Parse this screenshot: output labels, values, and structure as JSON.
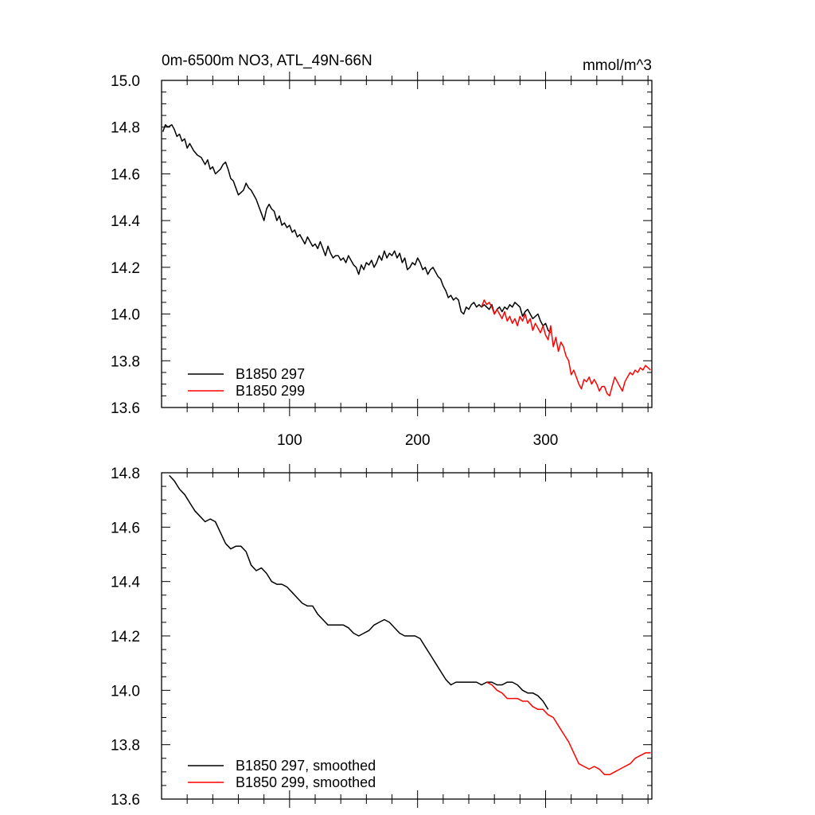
{
  "chart_data": [
    {
      "type": "line",
      "title_left": "0m-6500m NO3, ATL_49N-66N",
      "title_right": "mmol/m^3",
      "xlim": [
        0,
        383
      ],
      "ylim": [
        13.6,
        15.0
      ],
      "x_major_ticks": [
        100,
        200,
        300
      ],
      "x_major_labels": [
        "100",
        "200",
        "300"
      ],
      "y_major_ticks": [
        13.6,
        13.8,
        14.0,
        14.2,
        14.4,
        14.6,
        14.8,
        15.0
      ],
      "y_major_labels": [
        "13.6",
        "13.8",
        "14.0",
        "14.2",
        "14.4",
        "14.6",
        "14.8",
        "15.0"
      ],
      "legend_position": "bottom-left",
      "series": [
        {
          "name": "B1850 297",
          "color": "#000000",
          "x": [
            1,
            3,
            5,
            8,
            10,
            12,
            14,
            16,
            18,
            20,
            22,
            25,
            28,
            31,
            34,
            36,
            38,
            40,
            42,
            44,
            46,
            48,
            50,
            52,
            54,
            56,
            58,
            60,
            62,
            64,
            66,
            68,
            70,
            72,
            74,
            76,
            78,
            80,
            82,
            84,
            86,
            88,
            90,
            92,
            94,
            96,
            98,
            100,
            102,
            104,
            106,
            108,
            110,
            112,
            114,
            116,
            118,
            120,
            122,
            124,
            126,
            128,
            130,
            132,
            134,
            136,
            138,
            140,
            142,
            144,
            146,
            148,
            150,
            152,
            154,
            156,
            158,
            160,
            162,
            164,
            166,
            168,
            170,
            172,
            174,
            176,
            178,
            180,
            182,
            184,
            186,
            188,
            190,
            192,
            194,
            196,
            198,
            200,
            202,
            204,
            206,
            208,
            210,
            212,
            214,
            216,
            218,
            220,
            222,
            224,
            226,
            228,
            230,
            232,
            234,
            236,
            238,
            240,
            242,
            244,
            246,
            248,
            250,
            252,
            254,
            256,
            258,
            260,
            262,
            264,
            266,
            268,
            270,
            272,
            274,
            276,
            278,
            280,
            282,
            284,
            286,
            288,
            290,
            292,
            294,
            296,
            298,
            300,
            302,
            304
          ],
          "y": [
            14.78,
            14.81,
            14.8,
            14.81,
            14.79,
            14.76,
            14.77,
            14.74,
            14.75,
            14.71,
            14.73,
            14.7,
            14.68,
            14.67,
            14.64,
            14.66,
            14.62,
            14.63,
            14.6,
            14.61,
            14.62,
            14.64,
            14.65,
            14.62,
            14.58,
            14.57,
            14.54,
            14.51,
            14.52,
            14.53,
            14.56,
            14.54,
            14.53,
            14.51,
            14.49,
            14.46,
            14.43,
            14.4,
            14.45,
            14.47,
            14.45,
            14.44,
            14.4,
            14.42,
            14.38,
            14.39,
            14.37,
            14.38,
            14.35,
            14.36,
            14.33,
            14.34,
            14.32,
            14.3,
            14.33,
            14.31,
            14.29,
            14.3,
            14.28,
            14.31,
            14.28,
            14.25,
            14.29,
            14.26,
            14.24,
            14.25,
            14.25,
            14.23,
            14.24,
            14.22,
            14.25,
            14.23,
            14.21,
            14.2,
            14.17,
            14.21,
            14.19,
            14.22,
            14.21,
            14.23,
            14.2,
            14.22,
            14.25,
            14.23,
            14.27,
            14.24,
            14.26,
            14.25,
            14.27,
            14.24,
            14.26,
            14.22,
            14.24,
            14.19,
            14.2,
            14.22,
            14.21,
            14.24,
            14.22,
            14.19,
            14.2,
            14.17,
            14.19,
            14.2,
            14.18,
            14.16,
            14.15,
            14.12,
            14.1,
            14.07,
            14.08,
            14.06,
            14.07,
            14.06,
            14.01,
            14.0,
            14.03,
            14.02,
            14.04,
            14.05,
            14.03,
            14.04,
            14.03,
            14.04,
            14.03,
            14.02,
            14.04,
            14.0,
            14.02,
            14.03,
            14.01,
            14.03,
            14.02,
            14.04,
            14.03,
            14.05,
            14.04,
            14.03,
            13.99,
            14.01,
            14.02,
            14.0,
            13.98,
            13.99,
            14.0,
            13.97,
            13.95,
            13.96,
            13.93,
            13.92
          ]
        },
        {
          "name": "B1850 299",
          "color": "#ff0000",
          "x": [
            250,
            252,
            254,
            256,
            258,
            260,
            262,
            264,
            266,
            268,
            270,
            272,
            274,
            276,
            278,
            280,
            282,
            284,
            286,
            288,
            290,
            292,
            294,
            296,
            298,
            300,
            302,
            304,
            306,
            308,
            310,
            312,
            314,
            316,
            318,
            320,
            322,
            324,
            326,
            328,
            330,
            332,
            334,
            336,
            338,
            340,
            342,
            344,
            346,
            348,
            350,
            352,
            354,
            356,
            358,
            360,
            362,
            364,
            366,
            368,
            370,
            372,
            374,
            376,
            378,
            380,
            382
          ],
          "y": [
            14.03,
            14.06,
            14.04,
            14.05,
            14.03,
            14.0,
            14.02,
            14.0,
            13.98,
            14.01,
            13.97,
            13.99,
            13.96,
            13.98,
            13.95,
            13.99,
            13.97,
            14.0,
            13.96,
            13.98,
            13.93,
            13.96,
            13.94,
            13.92,
            13.95,
            13.91,
            13.89,
            13.95,
            13.86,
            13.9,
            13.84,
            13.88,
            13.86,
            13.82,
            13.8,
            13.74,
            13.76,
            13.73,
            13.7,
            13.68,
            13.72,
            13.71,
            13.73,
            13.7,
            13.72,
            13.7,
            13.67,
            13.69,
            13.69,
            13.66,
            13.65,
            13.69,
            13.73,
            13.71,
            13.69,
            13.67,
            13.71,
            13.73,
            13.75,
            13.74,
            13.76,
            13.75,
            13.77,
            13.76,
            13.78,
            13.77,
            13.76
          ]
        }
      ]
    },
    {
      "type": "line",
      "xlim": [
        0,
        383
      ],
      "ylim": [
        13.6,
        14.8
      ],
      "y_major_ticks": [
        13.6,
        13.8,
        14.0,
        14.2,
        14.4,
        14.6,
        14.8
      ],
      "y_major_labels": [
        "13.6",
        "13.8",
        "14.0",
        "14.2",
        "14.4",
        "14.6",
        "14.8"
      ],
      "legend_position": "bottom-left",
      "series": [
        {
          "name": "B1850 297, smoothed",
          "color": "#000000",
          "x": [
            6,
            10,
            14,
            18,
            22,
            26,
            30,
            34,
            38,
            42,
            46,
            50,
            54,
            58,
            62,
            66,
            70,
            74,
            78,
            82,
            86,
            90,
            94,
            98,
            102,
            106,
            110,
            114,
            118,
            122,
            126,
            130,
            134,
            138,
            142,
            146,
            150,
            154,
            158,
            162,
            166,
            170,
            174,
            178,
            182,
            186,
            190,
            194,
            198,
            202,
            206,
            210,
            214,
            218,
            222,
            226,
            230,
            234,
            238,
            242,
            246,
            250,
            254,
            258,
            262,
            266,
            270,
            274,
            278,
            282,
            286,
            290,
            294,
            298,
            302
          ],
          "y": [
            14.79,
            14.77,
            14.74,
            14.72,
            14.69,
            14.66,
            14.64,
            14.62,
            14.63,
            14.62,
            14.58,
            14.54,
            14.52,
            14.53,
            14.53,
            14.51,
            14.46,
            14.44,
            14.45,
            14.43,
            14.4,
            14.39,
            14.39,
            14.38,
            14.36,
            14.34,
            14.32,
            14.31,
            14.31,
            14.28,
            14.26,
            14.24,
            14.24,
            14.24,
            14.24,
            14.23,
            14.21,
            14.2,
            14.21,
            14.22,
            14.24,
            14.25,
            14.26,
            14.25,
            14.23,
            14.21,
            14.2,
            14.2,
            14.2,
            14.19,
            14.16,
            14.13,
            14.1,
            14.07,
            14.04,
            14.02,
            14.03,
            14.03,
            14.03,
            14.03,
            14.03,
            14.02,
            14.03,
            14.03,
            14.02,
            14.02,
            14.03,
            14.03,
            14.02,
            14.0,
            13.99,
            13.99,
            13.98,
            13.96,
            13.93
          ]
        },
        {
          "name": "B1850 299, smoothed",
          "color": "#ff0000",
          "x": [
            254,
            258,
            262,
            266,
            270,
            274,
            278,
            282,
            286,
            290,
            294,
            298,
            302,
            306,
            310,
            314,
            318,
            322,
            326,
            330,
            334,
            338,
            342,
            346,
            350,
            354,
            358,
            362,
            366,
            370,
            374,
            378,
            382
          ],
          "y": [
            14.03,
            14.02,
            14.0,
            13.99,
            13.97,
            13.97,
            13.97,
            13.96,
            13.96,
            13.94,
            13.93,
            13.93,
            13.91,
            13.9,
            13.87,
            13.84,
            13.81,
            13.77,
            13.73,
            13.72,
            13.71,
            13.72,
            13.71,
            13.69,
            13.69,
            13.7,
            13.71,
            13.72,
            13.73,
            13.75,
            13.76,
            13.77,
            13.77
          ]
        }
      ]
    }
  ]
}
